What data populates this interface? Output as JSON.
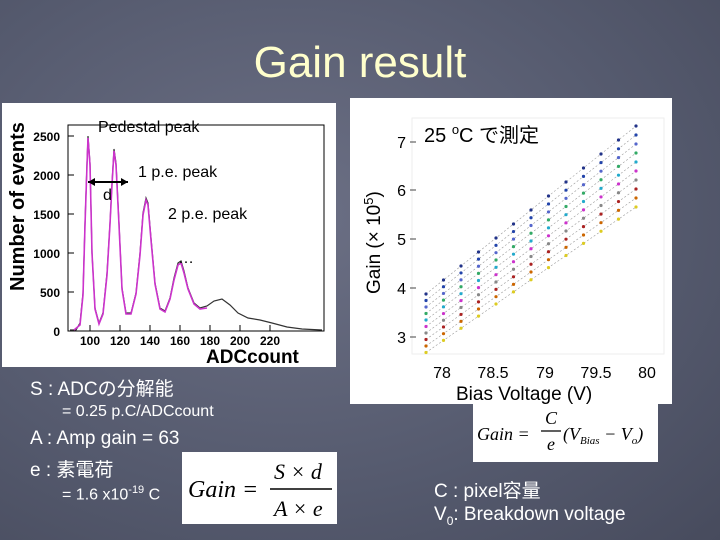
{
  "slide": {
    "title": "Gain result"
  },
  "left_plot": {
    "y_label": "Number of events",
    "x_label": "ADCcount",
    "y_ticks": [
      "2500",
      "2000",
      "1500",
      "1000",
      "500",
      "0"
    ],
    "x_ticks": [
      "100",
      "120",
      "140",
      "160",
      "180",
      "200",
      "220"
    ],
    "ann_pedestal": "Pedestal peak",
    "ann_1pe": "1 p.e. peak",
    "ann_d": "d",
    "ann_2pe": "2 p.e. peak",
    "ann_dots": "…"
  },
  "right_plot": {
    "y_label": "Gain (× 10^5)",
    "x_label": "Bias Voltage (V)",
    "y_ticks": [
      "7",
      "6",
      "5",
      "4",
      "3"
    ],
    "x_ticks": [
      "78",
      "78.5",
      "79",
      "79.5",
      "80"
    ],
    "annotation": "25 ",
    "annotation_deg": "o",
    "annotation_rest": "C で測定"
  },
  "text": {
    "s_line": "S : ADCの分解能",
    "s_value": "= 0.25 p.C/ADCcount",
    "a_line": "A : Amp gain = 63",
    "e_line": "e : 素電荷",
    "e_value_pre": "= 1.6 x10",
    "e_value_exp": "-19",
    "e_value_post": " C",
    "c_line": "C : pixel容量",
    "v0_pre": "V",
    "v0_sub": "0",
    "v0_post": ": Breakdown voltage"
  },
  "formula1": {
    "lhs": "Gain =",
    "num": "S × d",
    "den": "A × e"
  },
  "formula2": {
    "lhs": "Gain =",
    "num": "C",
    "den": "e",
    "rest": "(V",
    "sub1": "Bias",
    "mid": " − V",
    "sub2": "o",
    "end": ")"
  },
  "colors": {
    "title": "#ffffcc",
    "spectrum_line": "#333333",
    "spectrum_fit": "#cc33cc"
  }
}
